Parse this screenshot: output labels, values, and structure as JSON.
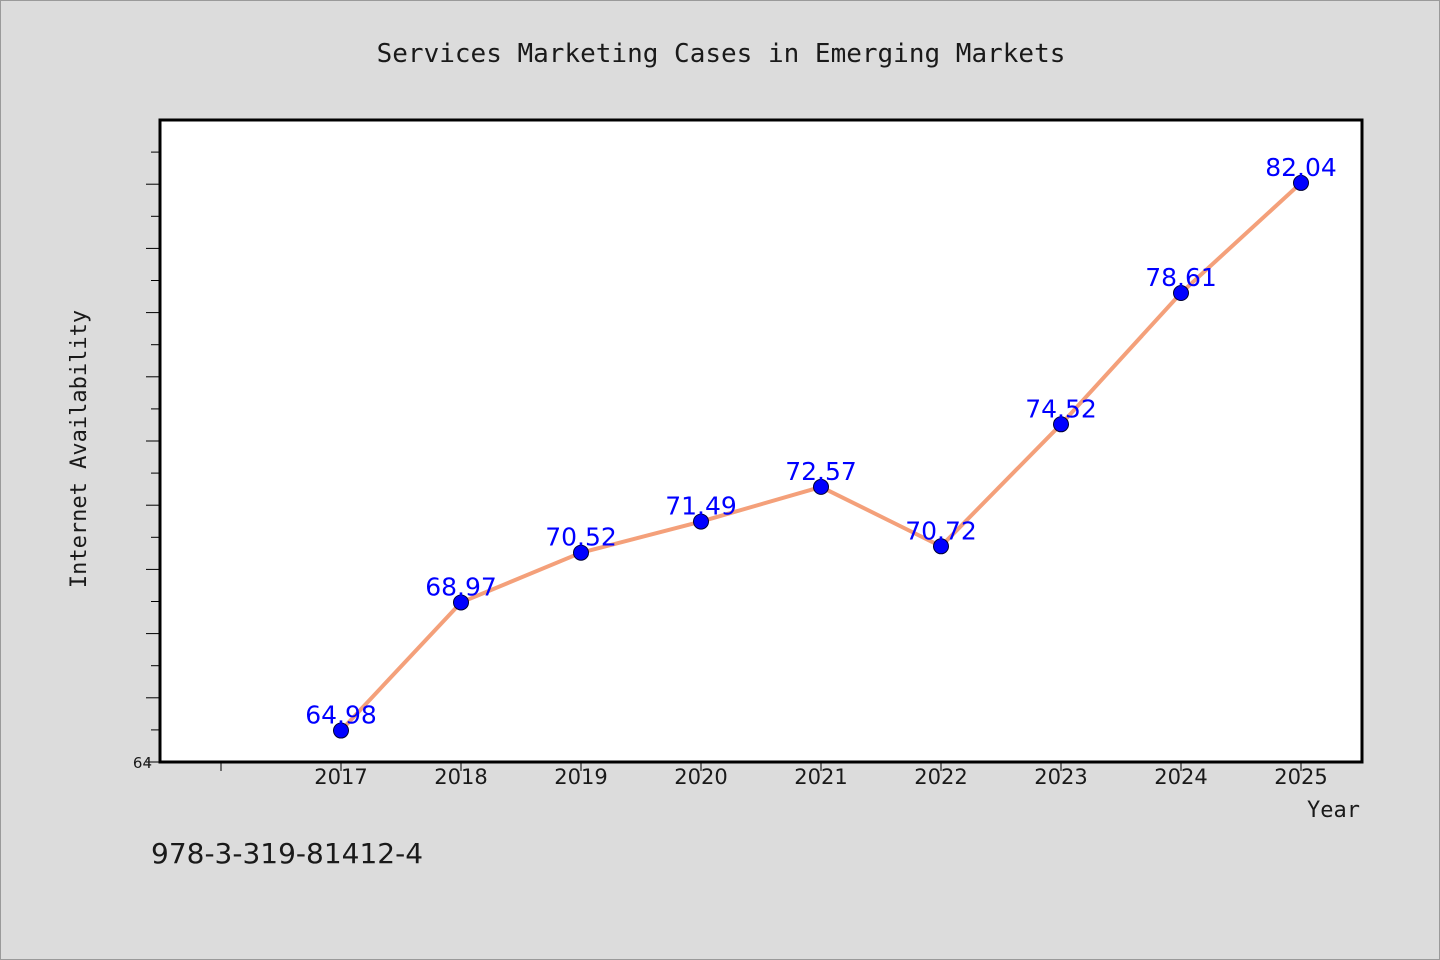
{
  "chart_data": {
    "type": "line",
    "title": "Services Marketing Cases in Emerging Markets",
    "xlabel": "Year",
    "ylabel": "Internet Availability",
    "categories": [
      "2017",
      "2018",
      "2019",
      "2020",
      "2021",
      "2022",
      "2023",
      "2024",
      "2025"
    ],
    "series": [
      {
        "values": [
          64.98,
          68.97,
          70.52,
          71.49,
          72.57,
          70.72,
          74.52,
          78.61,
          82.04
        ],
        "labels": [
          "64.98",
          "68.97",
          "70.52",
          "71.49",
          "72.57",
          "70.72",
          "74.52",
          "78.61",
          "82.04"
        ],
        "line_color": "#f4a07a",
        "marker_color": "#0000ff"
      }
    ],
    "ylim": [
      64,
      84
    ],
    "y_tick_labels": [
      "64"
    ],
    "grid": false,
    "legend": "none"
  },
  "footer": {
    "isbn": "978-3-319-81412-4"
  },
  "colors": {
    "background": "#dcdcdc",
    "plot_background": "#ffffff",
    "data_label": "#0000ff"
  }
}
